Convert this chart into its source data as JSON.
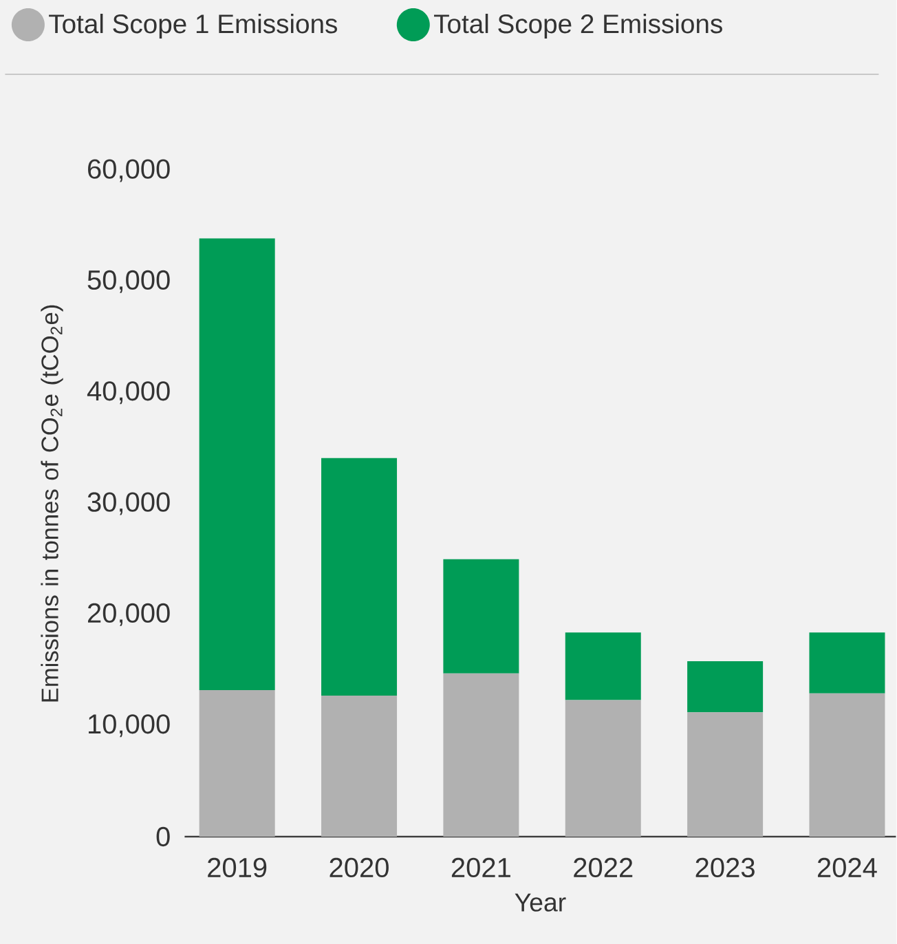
{
  "chart_data": {
    "type": "bar",
    "stacked": true,
    "categories": [
      "2019",
      "2020",
      "2021",
      "2022",
      "2023",
      "2024"
    ],
    "series": [
      {
        "name": "Total Scope 1 Emissions",
        "color": "#b1b1b1",
        "values": [
          13200,
          12700,
          14700,
          12300,
          11200,
          12900
        ]
      },
      {
        "name": "Total Scope 2 Emissions",
        "color": "#009c56",
        "values": [
          40700,
          21400,
          10300,
          6100,
          4600,
          5500
        ]
      }
    ],
    "xlabel": "Year",
    "ylabel": "Emissions in tonnes of CO$_{2}$e (tCO$_{2}$e)",
    "ylim": [
      0,
      60000
    ],
    "yticks": [
      0,
      {
        "value": 10000,
        "label": "10,000"
      },
      {
        "value": 20000,
        "label": "20,000"
      },
      {
        "value": 30000,
        "label": "30,000"
      },
      {
        "value": 40000,
        "label": "40,000"
      },
      {
        "value": 50000,
        "label": "50,000"
      },
      {
        "value": 60000,
        "label": "60,000"
      }
    ],
    "legend": "top",
    "grid": false
  }
}
